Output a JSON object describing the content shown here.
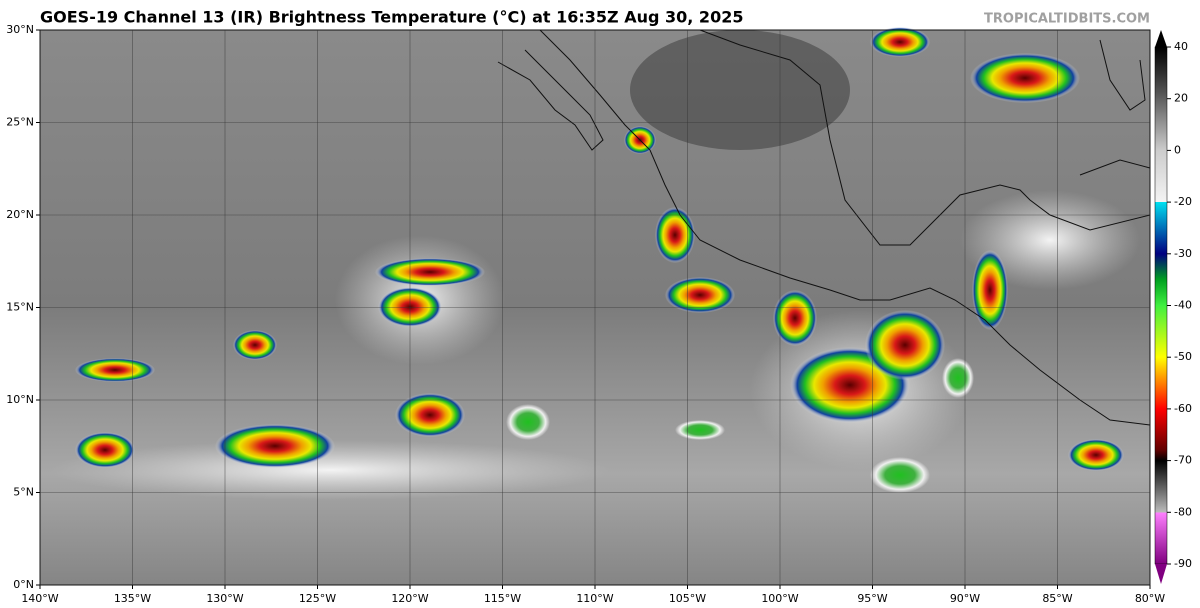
{
  "header": {
    "title": "GOES-19 Channel 13 (IR) Brightness Temperature (°C) at 16:35Z Aug 30, 2025",
    "credit": "TROPICALTIDBITS.COM"
  },
  "map": {
    "xlim": [
      -140,
      -80
    ],
    "ylim": [
      0,
      30
    ],
    "grid": true,
    "xticks": [
      {
        "value": -140,
        "label": "140°W"
      },
      {
        "value": -135,
        "label": "135°W"
      },
      {
        "value": -130,
        "label": "130°W"
      },
      {
        "value": -125,
        "label": "125°W"
      },
      {
        "value": -120,
        "label": "120°W"
      },
      {
        "value": -115,
        "label": "115°W"
      },
      {
        "value": -110,
        "label": "110°W"
      },
      {
        "value": -105,
        "label": "105°W"
      },
      {
        "value": -100,
        "label": "100°W"
      },
      {
        "value": -95,
        "label": "95°W"
      },
      {
        "value": -90,
        "label": "90°W"
      },
      {
        "value": -85,
        "label": "85°W"
      },
      {
        "value": -80,
        "label": "80°W"
      }
    ],
    "yticks": [
      {
        "value": 0,
        "label": "0°N"
      },
      {
        "value": 5,
        "label": "5°N"
      },
      {
        "value": 10,
        "label": "10°N"
      },
      {
        "value": 15,
        "label": "15°N"
      },
      {
        "value": 20,
        "label": "20°N"
      },
      {
        "value": 25,
        "label": "25°N"
      },
      {
        "value": 30,
        "label": "30°N"
      }
    ]
  },
  "colorbar": {
    "ticks": [
      40,
      20,
      0,
      -20,
      -30,
      -40,
      -50,
      -60,
      -70,
      -80,
      -90
    ]
  }
}
